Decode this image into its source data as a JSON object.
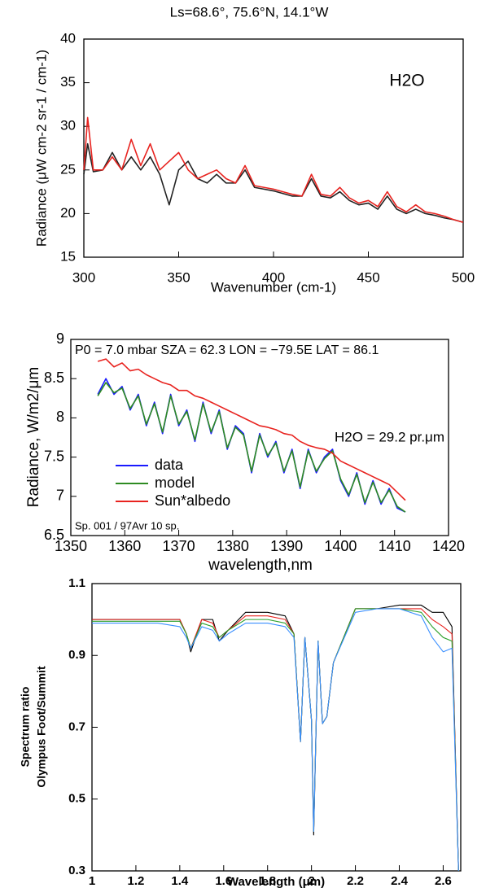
{
  "chart_data": [
    {
      "type": "line",
      "title": "Ls=68.6°, 75.6°N, 14.1°W",
      "xlabel": "Wavenumber (cm-1)",
      "ylabel": "Radiance (μW cm-2 sr-1 / cm-1)",
      "annotations": [
        "H2O"
      ],
      "x": [
        300,
        302,
        305,
        310,
        315,
        320,
        325,
        330,
        335,
        340,
        345,
        350,
        355,
        360,
        365,
        370,
        375,
        380,
        385,
        390,
        395,
        400,
        405,
        410,
        415,
        420,
        425,
        430,
        435,
        440,
        445,
        450,
        455,
        460,
        465,
        470,
        475,
        480,
        485,
        490,
        495,
        500
      ],
      "series": [
        {
          "color": "#222222",
          "values": [
            24.5,
            28,
            24.8,
            25,
            27,
            25,
            26.5,
            25,
            26.5,
            24.5,
            21,
            25,
            26,
            24,
            23.5,
            24.5,
            23.5,
            23.5,
            25,
            23,
            22.8,
            22.6,
            22.3,
            22,
            22,
            24,
            22,
            21.8,
            22.5,
            21.5,
            21,
            21.2,
            20.5,
            22,
            20.5,
            20,
            20.5,
            20,
            19.8,
            19.5,
            19.3,
            19
          ]
        },
        {
          "color": "#e8231f",
          "values": [
            25,
            31,
            25,
            25,
            26.5,
            25,
            28.5,
            25.5,
            28,
            25,
            26,
            27,
            25,
            24,
            24.5,
            25,
            24,
            23.5,
            25.5,
            23.2,
            23,
            22.8,
            22.5,
            22.2,
            22,
            24.5,
            22.2,
            22,
            23,
            21.8,
            21.2,
            21.5,
            20.8,
            22.5,
            20.8,
            20.2,
            21,
            20.2,
            20,
            19.7,
            19.3,
            19
          ]
        }
      ],
      "xlim": [
        300,
        500
      ],
      "xticks": [
        300,
        350,
        400,
        450,
        500
      ],
      "ylim": [
        15,
        40
      ],
      "yticks": [
        15,
        20,
        25,
        30,
        35,
        40
      ],
      "grid": false
    },
    {
      "type": "line",
      "xlabel": "wavelength,nm",
      "ylabel": "Radiance, W/m2/μm",
      "annotations": [
        "P0 = 7.0 mbar SZA = 62.3 LON = −79.5E LAT = 86.1",
        "H2O = 29.2 pr.μm",
        "Sp. 001 / 97Avr 10 sp."
      ],
      "x": [
        1355,
        1356.5,
        1358,
        1359.5,
        1361,
        1362.5,
        1364,
        1365.5,
        1367,
        1368.5,
        1370,
        1371.5,
        1373,
        1374.5,
        1376,
        1377.5,
        1379,
        1380.5,
        1382,
        1383.5,
        1385,
        1386.5,
        1388,
        1389.5,
        1391,
        1392.5,
        1394,
        1395.5,
        1397,
        1398.5,
        1400,
        1401.5,
        1403,
        1404.5,
        1406,
        1407.5,
        1409,
        1410.5,
        1412
      ],
      "series": [
        {
          "name": "data",
          "color": "#1a1aff",
          "values": [
            8.3,
            8.5,
            8.3,
            8.4,
            8.1,
            8.3,
            7.9,
            8.2,
            7.8,
            8.3,
            7.9,
            8.1,
            7.7,
            8.2,
            7.8,
            8.1,
            7.6,
            7.9,
            7.8,
            7.3,
            7.8,
            7.5,
            7.7,
            7.3,
            7.6,
            7.1,
            7.6,
            7.3,
            7.5,
            7.6,
            7.2,
            7.0,
            7.3,
            6.9,
            7.2,
            6.9,
            7.1,
            6.85,
            6.8
          ]
        },
        {
          "name": "model",
          "color": "#2e8b22",
          "values": [
            8.28,
            8.45,
            8.32,
            8.38,
            8.12,
            8.28,
            7.92,
            8.18,
            7.82,
            8.28,
            7.92,
            8.08,
            7.72,
            8.18,
            7.82,
            8.08,
            7.62,
            7.88,
            7.78,
            7.32,
            7.78,
            7.52,
            7.68,
            7.32,
            7.58,
            7.12,
            7.58,
            7.32,
            7.48,
            7.58,
            7.22,
            7.02,
            7.28,
            6.92,
            7.18,
            6.92,
            7.08,
            6.87,
            6.8
          ]
        },
        {
          "name": "Sun*albedo",
          "color": "#e8231f",
          "values": [
            8.72,
            8.75,
            8.65,
            8.7,
            8.6,
            8.62,
            8.55,
            8.5,
            8.45,
            8.42,
            8.35,
            8.35,
            8.28,
            8.25,
            8.2,
            8.15,
            8.1,
            8.05,
            8.0,
            7.95,
            7.9,
            7.88,
            7.85,
            7.8,
            7.78,
            7.7,
            7.65,
            7.62,
            7.6,
            7.55,
            7.45,
            7.4,
            7.35,
            7.3,
            7.25,
            7.2,
            7.15,
            7.05,
            6.95
          ]
        }
      ],
      "xlim": [
        1350,
        1420
      ],
      "xticks": [
        1350,
        1360,
        1370,
        1380,
        1390,
        1400,
        1410,
        1420
      ],
      "ylim": [
        6.5,
        9
      ],
      "yticks": [
        6.5,
        7,
        7.5,
        8,
        8.5,
        9
      ],
      "grid": false,
      "legend": "lower-left"
    },
    {
      "type": "line",
      "xlabel": "Wavelength (μm)",
      "ylabel": [
        "Spectrum ratio",
        "Olympus Foot/Summit"
      ],
      "x": [
        1,
        1.1,
        1.2,
        1.3,
        1.4,
        1.43,
        1.45,
        1.5,
        1.55,
        1.58,
        1.62,
        1.7,
        1.8,
        1.88,
        1.92,
        1.95,
        1.97,
        2.0,
        2.01,
        2.03,
        2.05,
        2.07,
        2.1,
        2.2,
        2.3,
        2.4,
        2.5,
        2.55,
        2.6,
        2.64,
        2.67
      ],
      "series": [
        {
          "color": "#000000",
          "values": [
            1.0,
            1.0,
            1.0,
            1.0,
            1.0,
            0.96,
            0.91,
            1.0,
            1.0,
            0.94,
            0.97,
            1.02,
            1.02,
            1.01,
            0.96,
            0.66,
            0.95,
            0.72,
            0.4,
            0.94,
            0.71,
            0.73,
            0.88,
            1.03,
            1.03,
            1.04,
            1.04,
            1.02,
            1.02,
            0.98,
            0.3
          ]
        },
        {
          "color": "#e8231f",
          "values": [
            1.0,
            1.0,
            1.0,
            1.0,
            1.0,
            0.96,
            0.92,
            1.0,
            0.99,
            0.95,
            0.97,
            1.01,
            1.01,
            1.0,
            0.96,
            0.66,
            0.95,
            0.72,
            0.41,
            0.94,
            0.71,
            0.73,
            0.88,
            1.03,
            1.03,
            1.03,
            1.03,
            1.0,
            0.98,
            0.96,
            0.3
          ]
        },
        {
          "color": "#2ca02c",
          "values": [
            0.995,
            0.995,
            0.995,
            0.995,
            0.995,
            0.96,
            0.92,
            0.99,
            0.98,
            0.95,
            0.97,
            1.0,
            1.0,
            0.99,
            0.96,
            0.66,
            0.95,
            0.72,
            0.41,
            0.94,
            0.71,
            0.73,
            0.88,
            1.03,
            1.03,
            1.03,
            1.02,
            0.98,
            0.95,
            0.94,
            0.3
          ]
        },
        {
          "color": "#3a8fff",
          "values": [
            0.99,
            0.99,
            0.99,
            0.99,
            0.98,
            0.95,
            0.92,
            0.98,
            0.97,
            0.94,
            0.96,
            0.99,
            0.99,
            0.98,
            0.95,
            0.66,
            0.95,
            0.72,
            0.41,
            0.94,
            0.71,
            0.73,
            0.88,
            1.02,
            1.03,
            1.03,
            1.01,
            0.95,
            0.91,
            0.92,
            0.3
          ]
        }
      ],
      "xlim": [
        1,
        2.68
      ],
      "xticks": [
        1,
        1.2,
        1.4,
        1.6,
        1.8,
        2,
        2.2,
        2.4,
        2.6
      ],
      "ylim": [
        0.3,
        1.1
      ],
      "yticks": [
        0.3,
        0.5,
        0.7,
        0.9,
        1.1
      ],
      "grid": false
    }
  ]
}
